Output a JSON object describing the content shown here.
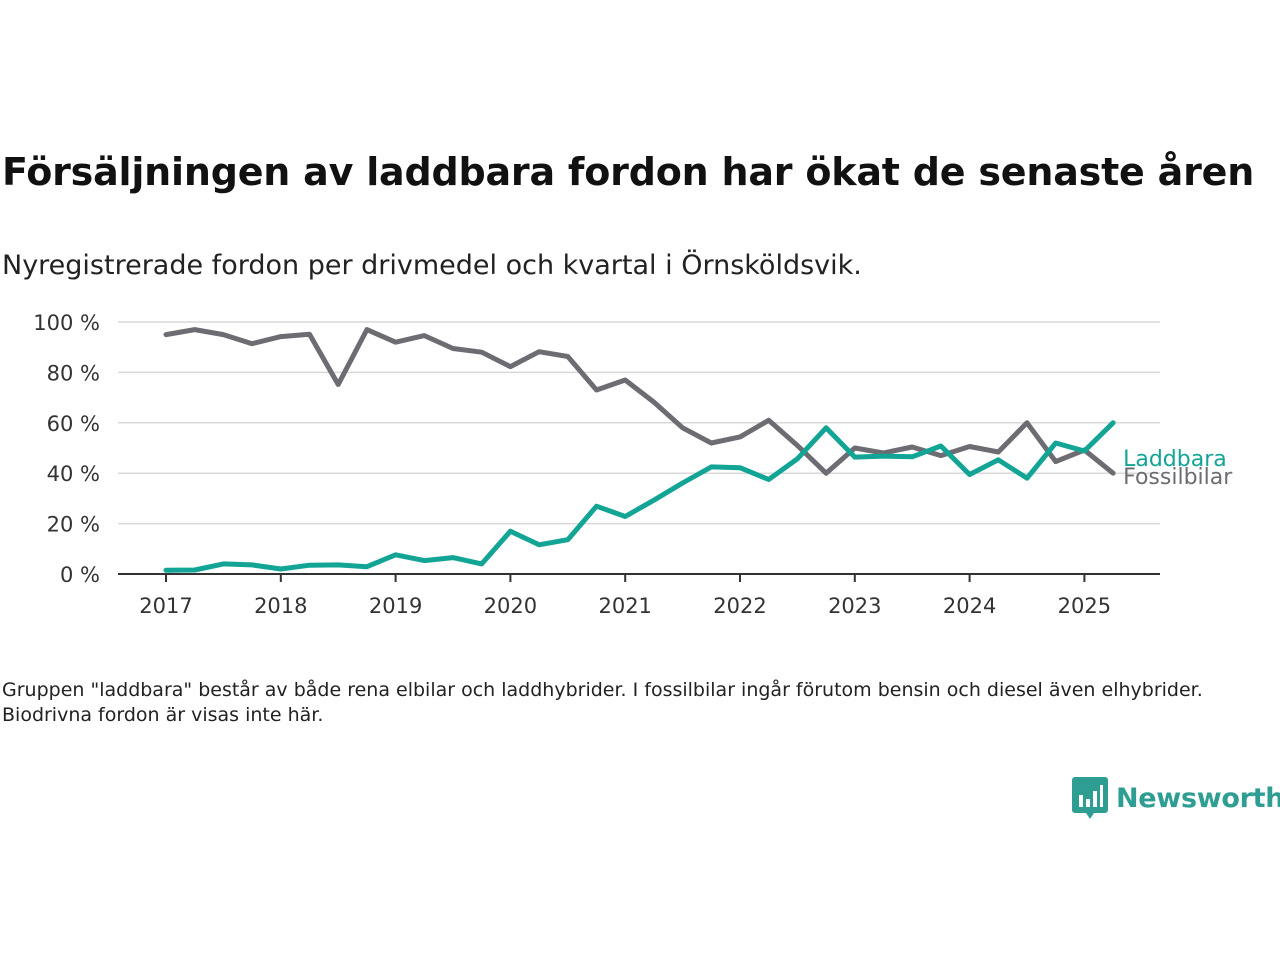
{
  "title": "Försäljningen av laddbara fordon har ökat de senaste åren",
  "subtitle": "Nyregistrerade fordon per drivmedel och kvartal i Örnsköldsvik.",
  "footnote": "Gruppen \"laddbara\" består av både rena elbilar och laddhybrider. I fossilbilar ingår förutom bensin och diesel även elhybrider. Biodrivna fordon är visas inte här.",
  "brand": {
    "name": "Newsworthy",
    "icon": "newsworthy-logo-icon",
    "color": "#2e9e92"
  },
  "chart_data": {
    "type": "line",
    "x_unit": "quarter",
    "x_tick_labels": [
      "2017",
      "2018",
      "2019",
      "2020",
      "2021",
      "2022",
      "2023",
      "2024",
      "2025"
    ],
    "y_tick_labels": [
      "0 %",
      "20 %",
      "40 %",
      "60 %",
      "80 %",
      "100 %"
    ],
    "ylim": [
      0,
      100
    ],
    "grid": true,
    "legend": "inline-right",
    "x": [
      "2017Q1",
      "2017Q2",
      "2017Q3",
      "2017Q4",
      "2018Q1",
      "2018Q2",
      "2018Q3",
      "2018Q4",
      "2019Q1",
      "2019Q2",
      "2019Q3",
      "2019Q4",
      "2020Q1",
      "2020Q2",
      "2020Q3",
      "2020Q4",
      "2021Q1",
      "2021Q2",
      "2021Q3",
      "2021Q4",
      "2022Q1",
      "2022Q2",
      "2022Q3",
      "2022Q4",
      "2023Q1",
      "2023Q2",
      "2023Q3",
      "2023Q4",
      "2024Q1",
      "2024Q2",
      "2024Q3",
      "2024Q4",
      "2025Q1",
      "2025Q2"
    ],
    "series": [
      {
        "name": "Laddbara",
        "color": "#12a595",
        "values": [
          1.5,
          1.6,
          4,
          3.6,
          2,
          3.5,
          3.6,
          2.9,
          7.6,
          5.3,
          6.5,
          4,
          17,
          11.6,
          13.6,
          26.9,
          22.8,
          29.3,
          36.1,
          42.5,
          42.2,
          37.5,
          45.7,
          58,
          46.4,
          46.8,
          46.5,
          50.8,
          39.5,
          45.3,
          38,
          52,
          48.8,
          60
        ]
      },
      {
        "name": "Fossilbilar",
        "color": "#6d6c72",
        "values": [
          95,
          97,
          95,
          91.4,
          94.2,
          95.1,
          75.2,
          97,
          92,
          94.6,
          89.5,
          88,
          82.3,
          88.2,
          86.3,
          73,
          77,
          68.2,
          58,
          52,
          54.4,
          61,
          51,
          40,
          50,
          48,
          50.4,
          47,
          50.6,
          48.4,
          60,
          44.6,
          49.2,
          40
        ]
      }
    ]
  }
}
